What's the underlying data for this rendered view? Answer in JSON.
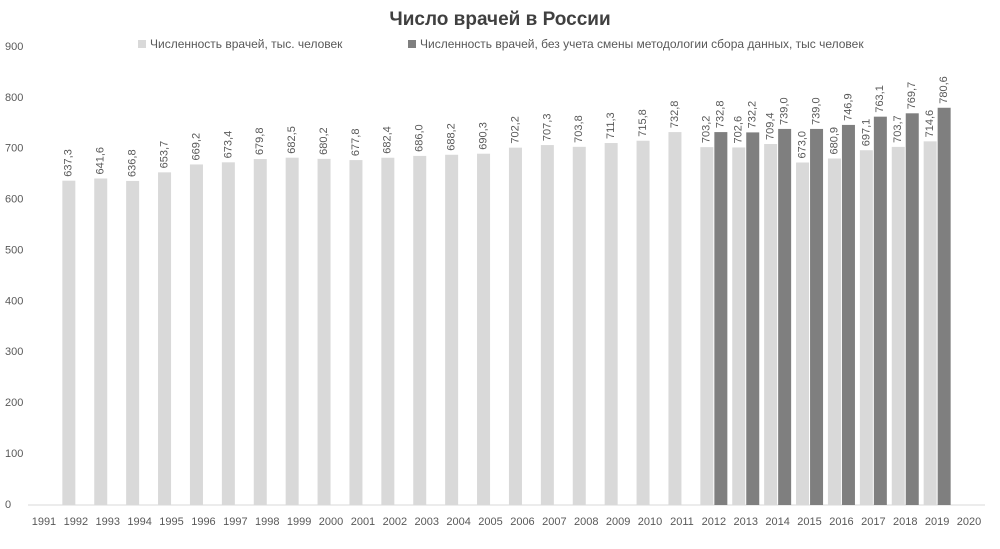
{
  "chart_data": {
    "type": "bar",
    "title": "Число врачей в России",
    "categories": [
      "1991",
      "1992",
      "1993",
      "1994",
      "1995",
      "1996",
      "1997",
      "1998",
      "1999",
      "2000",
      "2001",
      "2002",
      "2003",
      "2004",
      "2005",
      "2006",
      "2007",
      "2008",
      "2009",
      "2010",
      "2011",
      "2012",
      "2013",
      "2014",
      "2015",
      "2016",
      "2017",
      "2018",
      "2019",
      "2020"
    ],
    "series": [
      {
        "name": "Численность врачей, тыс. человек",
        "color": "#d9d9d9",
        "values": [
          null,
          637.3,
          641.6,
          636.8,
          653.7,
          669.2,
          673.4,
          679.8,
          682.5,
          680.2,
          677.8,
          682.4,
          686.0,
          688.2,
          690.3,
          702.2,
          707.3,
          703.8,
          711.3,
          715.8,
          732.8,
          703.2,
          702.6,
          709.4,
          673.0,
          680.9,
          697.1,
          703.7,
          714.6,
          null
        ],
        "value_labels": [
          null,
          "637,3",
          "641,6",
          "636,8",
          "653,7",
          "669,2",
          "673,4",
          "679,8",
          "682,5",
          "680,2",
          "677,8",
          "682,4",
          "686,0",
          "688,2",
          "690,3",
          "702,2",
          "707,3",
          "703,8",
          "711,3",
          "715,8",
          "732,8",
          "703,2",
          "702,6",
          "709,4",
          "673,0",
          "680,9",
          "697,1",
          "703,7",
          "714,6",
          null
        ]
      },
      {
        "name": "Численность врачей, без учета смены методологии сбора данных, тыс человек",
        "color": "#7f7f7f",
        "values": [
          null,
          null,
          null,
          null,
          null,
          null,
          null,
          null,
          null,
          null,
          null,
          null,
          null,
          null,
          null,
          null,
          null,
          null,
          null,
          null,
          null,
          732.8,
          732.2,
          739.0,
          739.0,
          746.9,
          763.1,
          769.7,
          780.6,
          null
        ],
        "value_labels": [
          null,
          null,
          null,
          null,
          null,
          null,
          null,
          null,
          null,
          null,
          null,
          null,
          null,
          null,
          null,
          null,
          null,
          null,
          null,
          null,
          null,
          "732,8",
          "732,2",
          "739,0",
          "739,0",
          "746,9",
          "763,1",
          "769,7",
          "780,6",
          null
        ]
      }
    ],
    "ylim": [
      0,
      900
    ],
    "yticks": [
      0,
      100,
      200,
      300,
      400,
      500,
      600,
      700,
      800,
      900
    ],
    "legend": "top"
  }
}
